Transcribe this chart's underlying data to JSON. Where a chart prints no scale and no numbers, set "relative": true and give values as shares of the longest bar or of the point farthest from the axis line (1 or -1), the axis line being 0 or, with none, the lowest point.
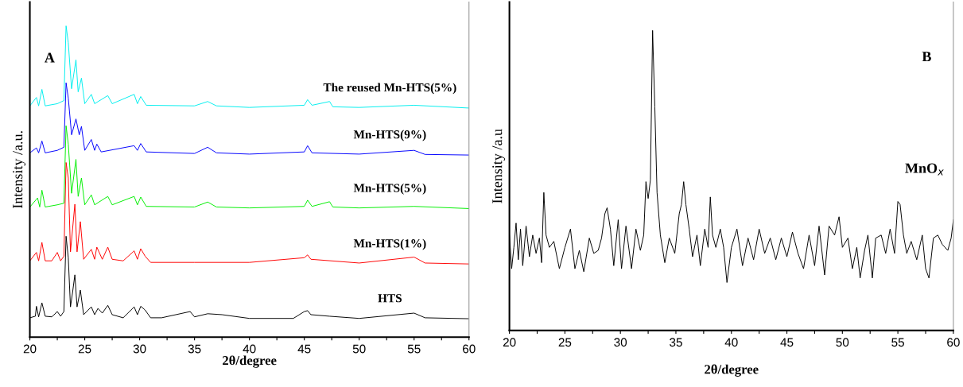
{
  "chart_data": [
    {
      "type": "line",
      "relative": true,
      "xlabel": "2θ/degree",
      "ylabel": "Intensity /a.u.",
      "annotations": [
        "A"
      ],
      "grid": false,
      "legend": false,
      "tick_labels": "x",
      "xlim": [
        20,
        60
      ],
      "xticks": [
        20,
        {
          "value": 22.5,
          "label": null
        },
        25,
        {
          "value": 27.5,
          "label": null
        },
        30,
        {
          "value": 32.5,
          "label": null
        },
        35,
        {
          "value": 37.5,
          "label": null
        },
        40,
        {
          "value": 42.5,
          "label": null
        },
        45,
        {
          "value": 47.5,
          "label": null
        },
        50,
        {
          "value": 52.5,
          "label": null
        },
        55,
        {
          "value": 57.5,
          "label": null
        },
        60
      ],
      "series": [
        {
          "name": "HTS",
          "color": "#000000",
          "x": [
            20.0,
            20.5,
            20.6,
            20.8,
            21.1,
            21.4,
            22.0,
            22.5,
            22.8,
            23.1,
            23.3,
            23.5,
            23.7,
            23.9,
            24.1,
            24.3,
            24.6,
            24.9,
            25.6,
            25.9,
            26.2,
            26.6,
            27.1,
            27.5,
            28.5,
            29.5,
            29.8,
            30.1,
            30.5,
            31.0,
            32.0,
            34.6,
            35.0,
            36.2,
            37.5,
            40.0,
            44.0,
            45.0,
            45.3,
            45.6,
            47.3,
            50.0,
            55.0,
            56.0,
            60.0
          ],
          "values": [
            0.062,
            0.067,
            0.099,
            0.065,
            0.11,
            0.067,
            0.065,
            0.082,
            0.067,
            0.082,
            0.324,
            0.255,
            0.097,
            0.146,
            0.2,
            0.097,
            0.151,
            0.072,
            0.097,
            0.072,
            0.092,
            0.077,
            0.102,
            0.072,
            0.062,
            0.097,
            0.072,
            0.099,
            0.087,
            0.062,
            0.062,
            0.082,
            0.065,
            0.075,
            0.072,
            0.06,
            0.06,
            0.082,
            0.085,
            0.072,
            0.067,
            0.06,
            0.077,
            0.062,
            0.059
          ]
        },
        {
          "name": "Mn-HTS(1%)",
          "color": "#ff0000",
          "x": [
            20.0,
            20.6,
            20.8,
            21.1,
            21.4,
            22.0,
            22.5,
            22.8,
            23.1,
            23.3,
            23.5,
            23.7,
            24.1,
            24.3,
            24.6,
            24.9,
            25.6,
            25.9,
            26.1,
            26.6,
            27.1,
            27.5,
            28.5,
            29.5,
            29.8,
            30.1,
            30.5,
            31.0,
            35.0,
            40.0,
            45.0,
            45.3,
            45.6,
            50.0,
            55.0,
            56.0,
            60.0
          ],
          "values": [
            0.245,
            0.272,
            0.245,
            0.304,
            0.245,
            0.245,
            0.272,
            0.245,
            0.26,
            0.561,
            0.511,
            0.274,
            0.427,
            0.274,
            0.371,
            0.25,
            0.282,
            0.25,
            0.289,
            0.25,
            0.289,
            0.25,
            0.245,
            0.277,
            0.25,
            0.284,
            0.26,
            0.24,
            0.24,
            0.24,
            0.255,
            0.264,
            0.25,
            0.238,
            0.257,
            0.238,
            0.235
          ]
        },
        {
          "name": "Mn-HTS(5%)",
          "color": "#00ee00",
          "x": [
            20.0,
            20.7,
            20.9,
            21.1,
            21.4,
            22.5,
            23.1,
            23.3,
            23.5,
            23.8,
            24.2,
            24.4,
            24.7,
            25.0,
            25.6,
            25.9,
            27.1,
            27.5,
            29.5,
            29.8,
            30.1,
            30.6,
            35.0,
            36.2,
            37.0,
            40.0,
            45.0,
            45.3,
            45.7,
            47.3,
            47.6,
            50.0,
            55.0,
            60.0
          ],
          "values": [
            0.418,
            0.447,
            0.418,
            0.472,
            0.418,
            0.425,
            0.43,
            0.679,
            0.62,
            0.462,
            0.571,
            0.452,
            0.511,
            0.425,
            0.457,
            0.425,
            0.452,
            0.425,
            0.452,
            0.425,
            0.45,
            0.42,
            0.418,
            0.434,
            0.418,
            0.415,
            0.42,
            0.44,
            0.42,
            0.435,
            0.418,
            0.415,
            0.42,
            0.413
          ]
        },
        {
          "name": "Mn-HTS(9%)",
          "color": "#0000ff",
          "x": [
            20.0,
            20.6,
            20.8,
            21.1,
            21.4,
            22.5,
            23.1,
            23.3,
            23.5,
            23.8,
            24.2,
            24.5,
            24.7,
            25.0,
            25.6,
            25.9,
            26.1,
            26.5,
            29.5,
            29.8,
            30.1,
            30.6,
            35.0,
            36.2,
            37.0,
            40.0,
            45.0,
            45.3,
            45.7,
            50.0,
            55.0,
            56.0,
            60.0
          ],
          "values": [
            0.592,
            0.608,
            0.592,
            0.63,
            0.592,
            0.6,
            0.61,
            0.817,
            0.768,
            0.65,
            0.701,
            0.65,
            0.677,
            0.6,
            0.635,
            0.6,
            0.62,
            0.595,
            0.615,
            0.6,
            0.622,
            0.595,
            0.59,
            0.61,
            0.592,
            0.588,
            0.595,
            0.615,
            0.592,
            0.588,
            0.6,
            0.587,
            0.585
          ]
        },
        {
          "name": "The reused Mn-HTS(5%)",
          "color": "#00eeee",
          "x": [
            20.0,
            20.6,
            20.8,
            21.1,
            21.4,
            22.5,
            23.1,
            23.3,
            23.5,
            23.8,
            24.2,
            24.4,
            24.7,
            25.0,
            25.6,
            25.9,
            27.1,
            27.5,
            29.5,
            29.8,
            30.1,
            30.6,
            35.0,
            36.2,
            37.0,
            40.0,
            45.0,
            45.3,
            45.7,
            47.3,
            47.6,
            50.0,
            55.0,
            60.0
          ],
          "values": [
            0.743,
            0.77,
            0.743,
            0.796,
            0.743,
            0.75,
            0.76,
            1.0,
            0.946,
            0.798,
            0.891,
            0.788,
            0.832,
            0.75,
            0.78,
            0.75,
            0.776,
            0.75,
            0.78,
            0.75,
            0.773,
            0.745,
            0.743,
            0.757,
            0.743,
            0.738,
            0.745,
            0.763,
            0.745,
            0.757,
            0.74,
            0.738,
            0.745,
            0.736
          ]
        }
      ]
    },
    {
      "type": "line",
      "relative": true,
      "xlabel": "2θ/degree",
      "ylabel": "Intensity /a.u",
      "annotations": [
        "B",
        "MnO$_{x}$"
      ],
      "grid": false,
      "legend": false,
      "tick_labels": "x",
      "xlim": [
        20,
        60
      ],
      "xticks": [
        20,
        {
          "value": 22.5,
          "label": null
        },
        25,
        {
          "value": 27.5,
          "label": null
        },
        30,
        {
          "value": 32.5,
          "label": null
        },
        35,
        {
          "value": 37.5,
          "label": null
        },
        40,
        {
          "value": 42.5,
          "label": null
        },
        45,
        {
          "value": 47.5,
          "label": null
        },
        50,
        {
          "value": 52.5,
          "label": null
        },
        55,
        {
          "value": 57.5,
          "label": null
        },
        60
      ],
      "series": [
        {
          "color": "#000000",
          "x": [
            20.0,
            20.2,
            20.4,
            20.6,
            20.8,
            21.0,
            21.2,
            21.5,
            21.8,
            22.1,
            22.4,
            22.7,
            22.9,
            23.1,
            23.3,
            23.6,
            24.0,
            24.5,
            25.0,
            25.5,
            25.9,
            26.3,
            26.7,
            27.2,
            27.6,
            28.0,
            28.3,
            28.6,
            28.8,
            29.1,
            29.4,
            29.8,
            30.1,
            30.5,
            31.0,
            31.4,
            31.8,
            32.1,
            32.3,
            32.5,
            32.7,
            32.9,
            33.1,
            33.3,
            33.6,
            34.0,
            34.4,
            34.9,
            35.3,
            35.5,
            35.7,
            35.9,
            36.2,
            36.5,
            36.9,
            37.2,
            37.6,
            37.9,
            38.1,
            38.3,
            38.6,
            39.0,
            39.3,
            39.6,
            40.0,
            40.5,
            41.0,
            41.5,
            42.0,
            42.5,
            43.0,
            43.5,
            44.0,
            44.5,
            45.0,
            45.5,
            46.0,
            46.5,
            47.0,
            47.5,
            47.9,
            48.4,
            48.8,
            49.3,
            49.7,
            50.0,
            50.5,
            50.9,
            51.3,
            51.6,
            52.0,
            52.3,
            52.7,
            53.0,
            53.5,
            53.9,
            54.3,
            54.7,
            55.0,
            55.2,
            55.5,
            55.8,
            56.2,
            56.7,
            57.2,
            57.5,
            57.8,
            58.2,
            58.6,
            59.0,
            59.5,
            59.8,
            60.0
          ],
          "values": [
            0.318,
            0.206,
            0.277,
            0.358,
            0.236,
            0.338,
            0.216,
            0.348,
            0.246,
            0.318,
            0.257,
            0.308,
            0.226,
            0.46,
            0.318,
            0.277,
            0.297,
            0.206,
            0.277,
            0.338,
            0.206,
            0.267,
            0.196,
            0.308,
            0.257,
            0.267,
            0.308,
            0.389,
            0.409,
            0.338,
            0.216,
            0.369,
            0.206,
            0.348,
            0.206,
            0.338,
            0.267,
            0.318,
            0.496,
            0.44,
            0.501,
            1.0,
            0.745,
            0.46,
            0.318,
            0.226,
            0.308,
            0.257,
            0.389,
            0.42,
            0.496,
            0.42,
            0.338,
            0.246,
            0.318,
            0.216,
            0.338,
            0.277,
            0.445,
            0.318,
            0.277,
            0.338,
            0.277,
            0.16,
            0.277,
            0.338,
            0.216,
            0.308,
            0.236,
            0.338,
            0.257,
            0.308,
            0.236,
            0.308,
            0.246,
            0.328,
            0.257,
            0.206,
            0.318,
            0.216,
            0.348,
            0.185,
            0.348,
            0.318,
            0.379,
            0.277,
            0.308,
            0.206,
            0.277,
            0.175,
            0.267,
            0.318,
            0.175,
            0.308,
            0.318,
            0.257,
            0.338,
            0.257,
            0.43,
            0.42,
            0.318,
            0.257,
            0.297,
            0.236,
            0.318,
            0.206,
            0.175,
            0.308,
            0.318,
            0.287,
            0.267,
            0.308,
            0.369
          ]
        }
      ]
    }
  ]
}
